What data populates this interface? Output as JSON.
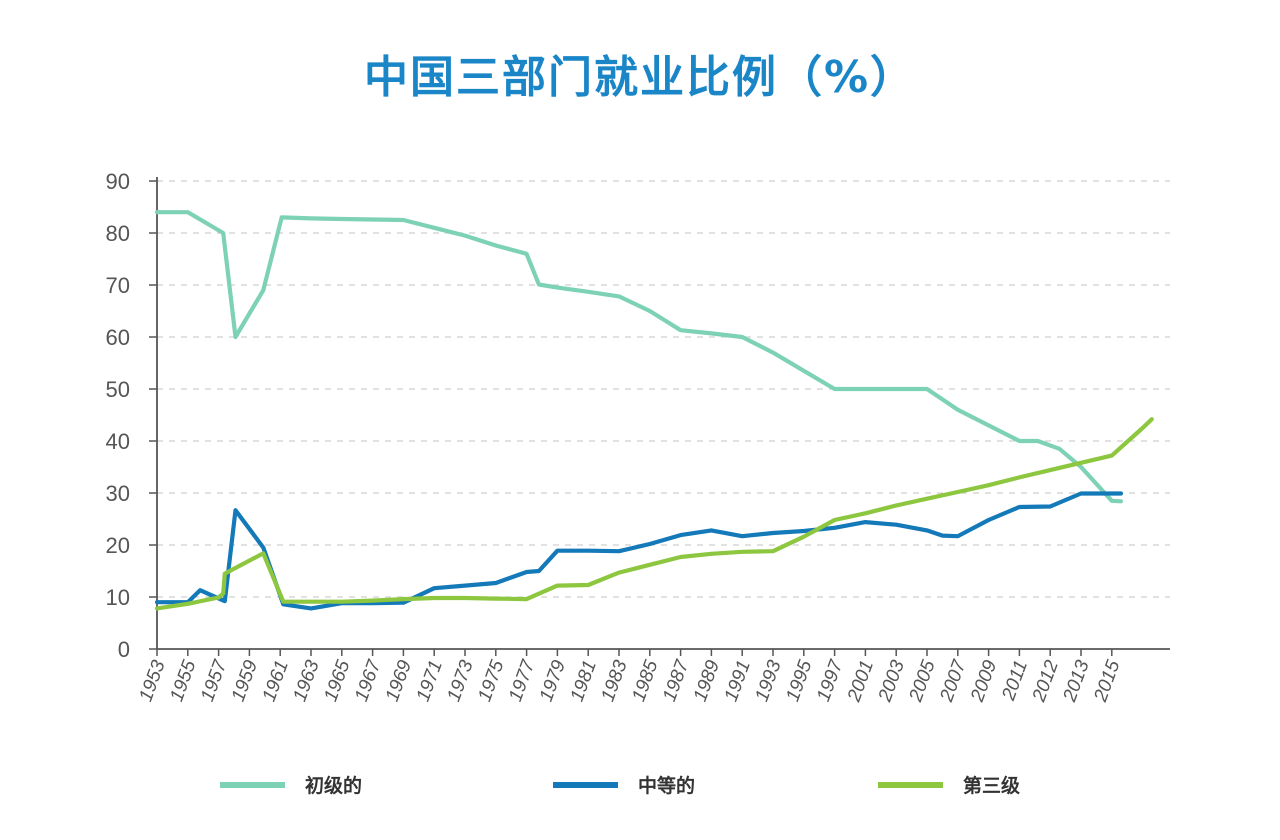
{
  "title": "中国三部门就业比例（%）",
  "colors": {
    "primary": "#7dd2b6",
    "secondary": "#1479b8",
    "tertiary": "#8dc63f",
    "title": "#1a86c8",
    "grid": "#cfcfcf",
    "axis": "#555555"
  },
  "chart_data": {
    "type": "line",
    "title": "中国三部门就业比例（%）",
    "xlabel": "",
    "ylabel": "",
    "ylim": [
      0,
      90
    ],
    "yticks": [
      "0",
      "10",
      "20",
      "30",
      "40",
      "50",
      "60",
      "70",
      "80",
      "90"
    ],
    "grid": true,
    "legend_position": "bottom",
    "x_tick_labels": [
      "1953",
      "1955",
      "1957",
      "1959",
      "1961",
      "1963",
      "1965",
      "1967",
      "1969",
      "1971",
      "1973",
      "1975",
      "1977",
      "1979",
      "1981",
      "1983",
      "1985",
      "1987",
      "1989",
      "1991",
      "1993",
      "1995",
      "1997",
      "2001",
      "2003",
      "2005",
      "2007",
      "2009",
      "2011",
      "2012",
      "2013",
      "2015"
    ],
    "series": [
      {
        "name": "初级的",
        "color": "#7dd2b6",
        "points": [
          [
            0,
            84
          ],
          [
            1,
            84
          ],
          [
            2.15,
            80
          ],
          [
            2.55,
            60
          ],
          [
            3.45,
            69
          ],
          [
            4.05,
            83
          ],
          [
            5,
            82.8
          ],
          [
            6,
            82.7
          ],
          [
            7,
            82.6
          ],
          [
            8,
            82.5
          ],
          [
            9,
            81
          ],
          [
            10,
            79.5
          ],
          [
            11,
            77.6
          ],
          [
            12,
            76
          ],
          [
            12.4,
            70.1
          ],
          [
            13,
            69.5
          ],
          [
            14,
            68.7
          ],
          [
            15,
            67.8
          ],
          [
            16,
            65
          ],
          [
            17,
            61.3
          ],
          [
            18,
            60.7
          ],
          [
            19,
            60
          ],
          [
            20,
            57
          ],
          [
            21,
            53.5
          ],
          [
            22,
            50
          ],
          [
            23,
            50
          ],
          [
            24,
            50
          ],
          [
            25,
            50
          ],
          [
            26,
            46
          ],
          [
            27,
            43
          ],
          [
            28,
            40
          ],
          [
            28.6,
            40
          ],
          [
            29.3,
            38.5
          ],
          [
            30,
            35
          ],
          [
            31,
            28.5
          ],
          [
            31.3,
            28.4
          ]
        ]
      },
      {
        "name": "中等的",
        "color": "#1479b8",
        "points": [
          [
            0,
            9
          ],
          [
            1,
            9
          ],
          [
            1.4,
            11.3
          ],
          [
            2.2,
            9.2
          ],
          [
            2.55,
            26.7
          ],
          [
            3.45,
            19.5
          ],
          [
            4.1,
            8.6
          ],
          [
            5,
            7.8
          ],
          [
            6,
            8.8
          ],
          [
            7,
            8.8
          ],
          [
            8,
            8.9
          ],
          [
            9,
            11.7
          ],
          [
            10,
            12.2
          ],
          [
            11,
            12.7
          ],
          [
            12,
            14.8
          ],
          [
            12.4,
            15
          ],
          [
            13,
            18.9
          ],
          [
            14,
            18.9
          ],
          [
            15,
            18.8
          ],
          [
            16,
            20.2
          ],
          [
            17,
            21.9
          ],
          [
            18,
            22.8
          ],
          [
            19,
            21.7
          ],
          [
            20,
            22.3
          ],
          [
            21,
            22.7
          ],
          [
            22,
            23.3
          ],
          [
            23,
            24.4
          ],
          [
            24,
            23.9
          ],
          [
            25,
            22.8
          ],
          [
            25.5,
            21.8
          ],
          [
            26,
            21.7
          ],
          [
            27,
            24.8
          ],
          [
            28,
            27.3
          ],
          [
            29,
            27.4
          ],
          [
            30,
            29.9
          ],
          [
            31,
            29.9
          ],
          [
            31.3,
            29.9
          ]
        ]
      },
      {
        "name": "第三级",
        "color": "#8dc63f",
        "points": [
          [
            0,
            7.8
          ],
          [
            1,
            8.7
          ],
          [
            2,
            9.9
          ],
          [
            2.15,
            10.7
          ],
          [
            2.2,
            14.5
          ],
          [
            3.45,
            18.4
          ],
          [
            4.1,
            9.1
          ],
          [
            5,
            9.1
          ],
          [
            6,
            9.1
          ],
          [
            7,
            9.3
          ],
          [
            8,
            9.6
          ],
          [
            9,
            9.8
          ],
          [
            10,
            9.8
          ],
          [
            11,
            9.7
          ],
          [
            12,
            9.6
          ],
          [
            13,
            12.2
          ],
          [
            14,
            12.3
          ],
          [
            15,
            14.7
          ],
          [
            16,
            16.2
          ],
          [
            17,
            17.7
          ],
          [
            18,
            18.3
          ],
          [
            19,
            18.7
          ],
          [
            20,
            18.8
          ],
          [
            21,
            21.6
          ],
          [
            22,
            24.8
          ],
          [
            23,
            26.1
          ],
          [
            24,
            27.6
          ],
          [
            25,
            28.9
          ],
          [
            26,
            30.2
          ],
          [
            27,
            31.5
          ],
          [
            28,
            33
          ],
          [
            29,
            34.4
          ],
          [
            30,
            35.8
          ],
          [
            31,
            37.2
          ],
          [
            32,
            42.5
          ],
          [
            32.3,
            44.2
          ]
        ]
      }
    ]
  }
}
